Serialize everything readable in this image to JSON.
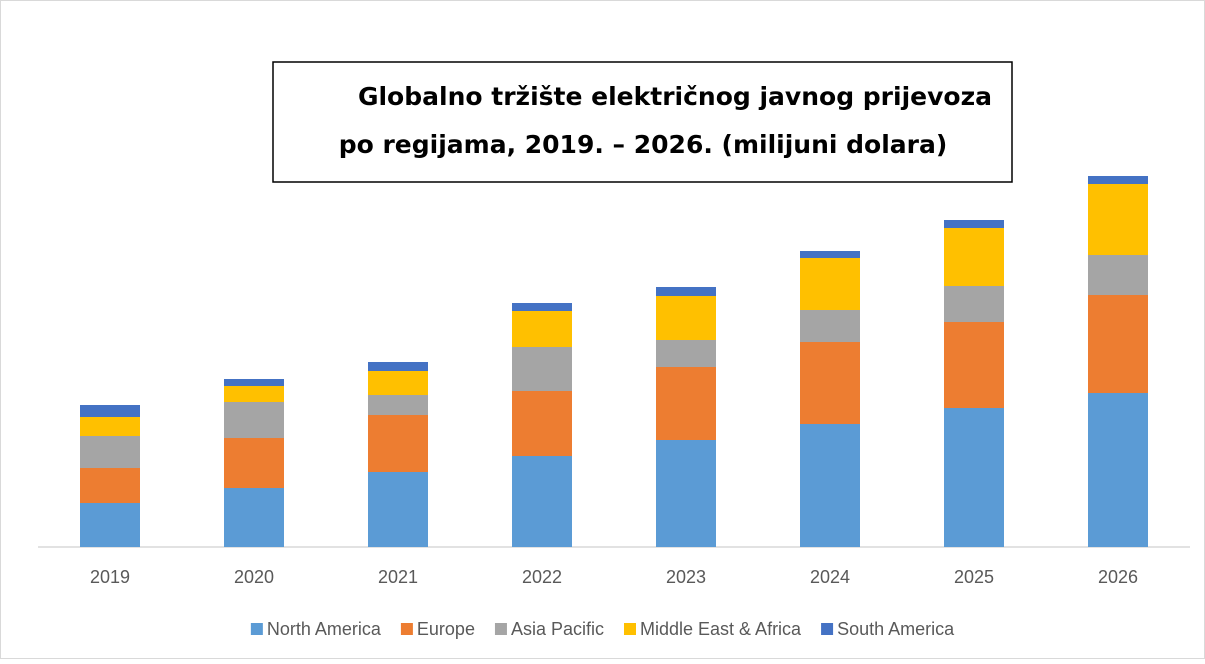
{
  "chart_data": {
    "type": "stacked_bar",
    "title_lines": [
      "Globalno tržište električnog javnog prijevoza",
      "po regijama, 2019. – 2026. (milijuni dolara)"
    ],
    "categories": [
      "2019",
      "2020",
      "2021",
      "2022",
      "2023",
      "2024",
      "2025",
      "2026"
    ],
    "ylim": [
      0,
      400
    ],
    "series": [
      {
        "name": "North America",
        "color": "#5b9bd5",
        "values": [
          44,
          59,
          75,
          91,
          107,
          123,
          139,
          154
        ]
      },
      {
        "name": "Europe",
        "color": "#ed7d31",
        "values": [
          35,
          50,
          57,
          65,
          73,
          82,
          86,
          98
        ]
      },
      {
        "name": "Asia Pacific",
        "color": "#a5a5a5",
        "values": [
          32,
          36,
          20,
          44,
          27,
          32,
          36,
          40
        ]
      },
      {
        "name": "Middle East & Africa",
        "color": "#ffc000",
        "values": [
          19,
          16,
          24,
          36,
          44,
          52,
          58,
          71
        ]
      },
      {
        "name": "South America",
        "color": "#4472c4",
        "values": [
          12,
          7,
          9,
          8,
          9,
          7,
          8,
          8
        ]
      }
    ]
  }
}
